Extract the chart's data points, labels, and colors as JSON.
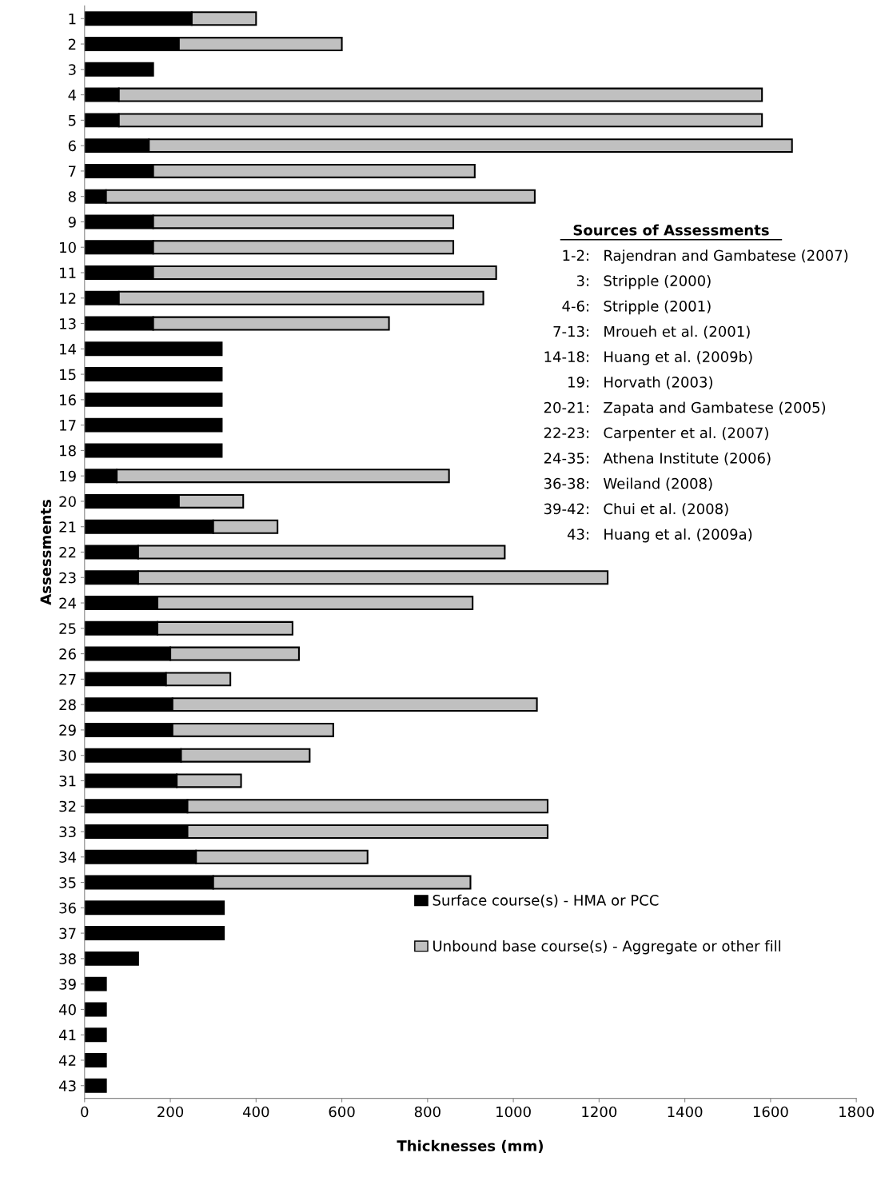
{
  "chart_data": {
    "type": "bar",
    "orientation": "horizontal",
    "stacked": true,
    "xlabel": "Thicknesses (mm)",
    "ylabel": "Assessments",
    "categories": [
      "1",
      "2",
      "3",
      "4",
      "5",
      "6",
      "7",
      "8",
      "9",
      "10",
      "11",
      "12",
      "13",
      "14",
      "15",
      "16",
      "17",
      "18",
      "19",
      "20",
      "21",
      "22",
      "23",
      "24",
      "25",
      "26",
      "27",
      "28",
      "29",
      "30",
      "31",
      "32",
      "33",
      "34",
      "35",
      "36",
      "37",
      "38",
      "39",
      "40",
      "41",
      "42",
      "43"
    ],
    "series": [
      {
        "name": "Surface course(s) - HMA or PCC",
        "color": "#000000",
        "values": [
          250,
          220,
          160,
          80,
          80,
          150,
          160,
          50,
          160,
          160,
          160,
          80,
          160,
          320,
          320,
          320,
          320,
          320,
          75,
          220,
          300,
          125,
          125,
          170,
          170,
          200,
          190,
          205,
          205,
          225,
          215,
          240,
          240,
          260,
          300,
          325,
          325,
          125,
          50,
          50,
          50,
          50,
          50
        ]
      },
      {
        "name": "Unbound base course(s) - Aggregate or other fill",
        "color": "#c0c0c0",
        "values": [
          150,
          380,
          null,
          1500,
          1500,
          1500,
          750,
          1000,
          700,
          700,
          800,
          850,
          550,
          null,
          null,
          null,
          null,
          null,
          775,
          150,
          150,
          855,
          1095,
          735,
          315,
          300,
          150,
          850,
          375,
          300,
          150,
          840,
          840,
          400,
          600,
          null,
          null,
          null,
          null,
          null,
          null,
          null,
          null
        ]
      }
    ],
    "xlim": [
      0,
      1800
    ],
    "xticks": [
      0,
      200,
      400,
      600,
      800,
      1000,
      1200,
      1400,
      1600,
      1800
    ],
    "grid": false,
    "legend": "bottom right",
    "annotations": [
      "Sources of Assessments",
      "1-2:  Rajendran and Gambatese (2007)",
      "3:  Stripple (2000)",
      "4-6:  Stripple (2001)",
      "7-13:  Mroueh et al. (2001)",
      "14-18:  Huang et al. (2009b)",
      "19:  Horvath (2003)",
      "20-21:  Zapata and Gambatese (2005)",
      "22-23:  Carpenter et al. (2007)",
      "24-35:  Athena Institute (2006)",
      "36-38:  Weiland (2008)",
      "39-42:  Chui et al. (2008)",
      "43:  Huang et al. (2009a)"
    ]
  }
}
